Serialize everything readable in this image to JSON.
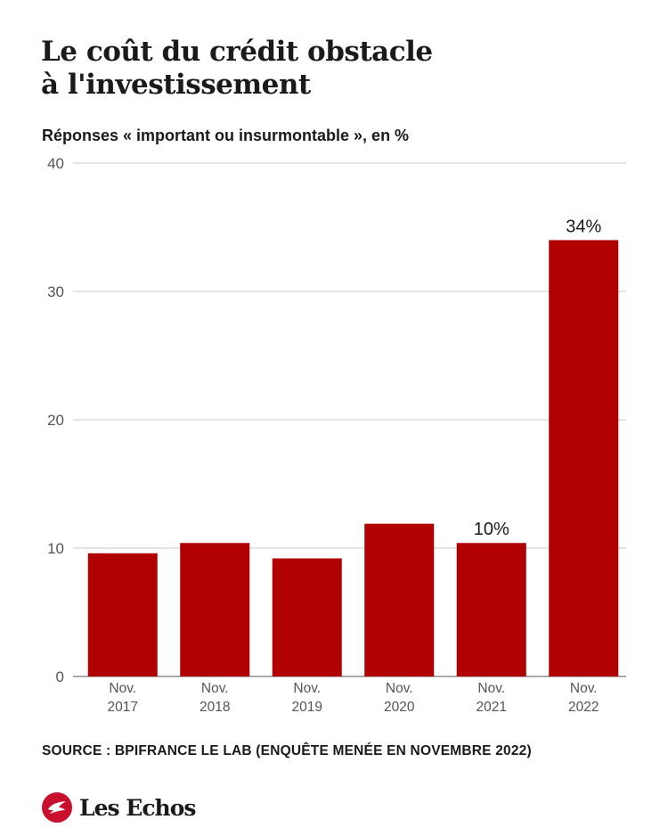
{
  "title_line1": "Le coût du crédit obstacle",
  "title_line2": "à l'investissement",
  "subtitle": "Réponses « important ou insurmontable », en %",
  "source": "SOURCE : BPIFRANCE LE LAB (ENQUÊTE MENÉE EN NOVEMBRE 2022)",
  "brand": "Les Echos",
  "colors": {
    "bar": "#b00000",
    "grid": "#c8c8c8",
    "brand": "#c8102e"
  },
  "chart_data": {
    "type": "bar",
    "categories": [
      [
        "Nov.",
        "2017"
      ],
      [
        "Nov.",
        "2018"
      ],
      [
        "Nov.",
        "2019"
      ],
      [
        "Nov.",
        "2020"
      ],
      [
        "Nov.",
        "2021"
      ],
      [
        "Nov.",
        "2022"
      ]
    ],
    "values": [
      9.6,
      10.4,
      9.2,
      11.9,
      10.4,
      34
    ],
    "data_labels": [
      "",
      "",
      "",
      "",
      "10%",
      "34%"
    ],
    "yticks": [
      0,
      10,
      20,
      30,
      40
    ],
    "ylim": [
      0,
      40
    ],
    "grid": true
  }
}
